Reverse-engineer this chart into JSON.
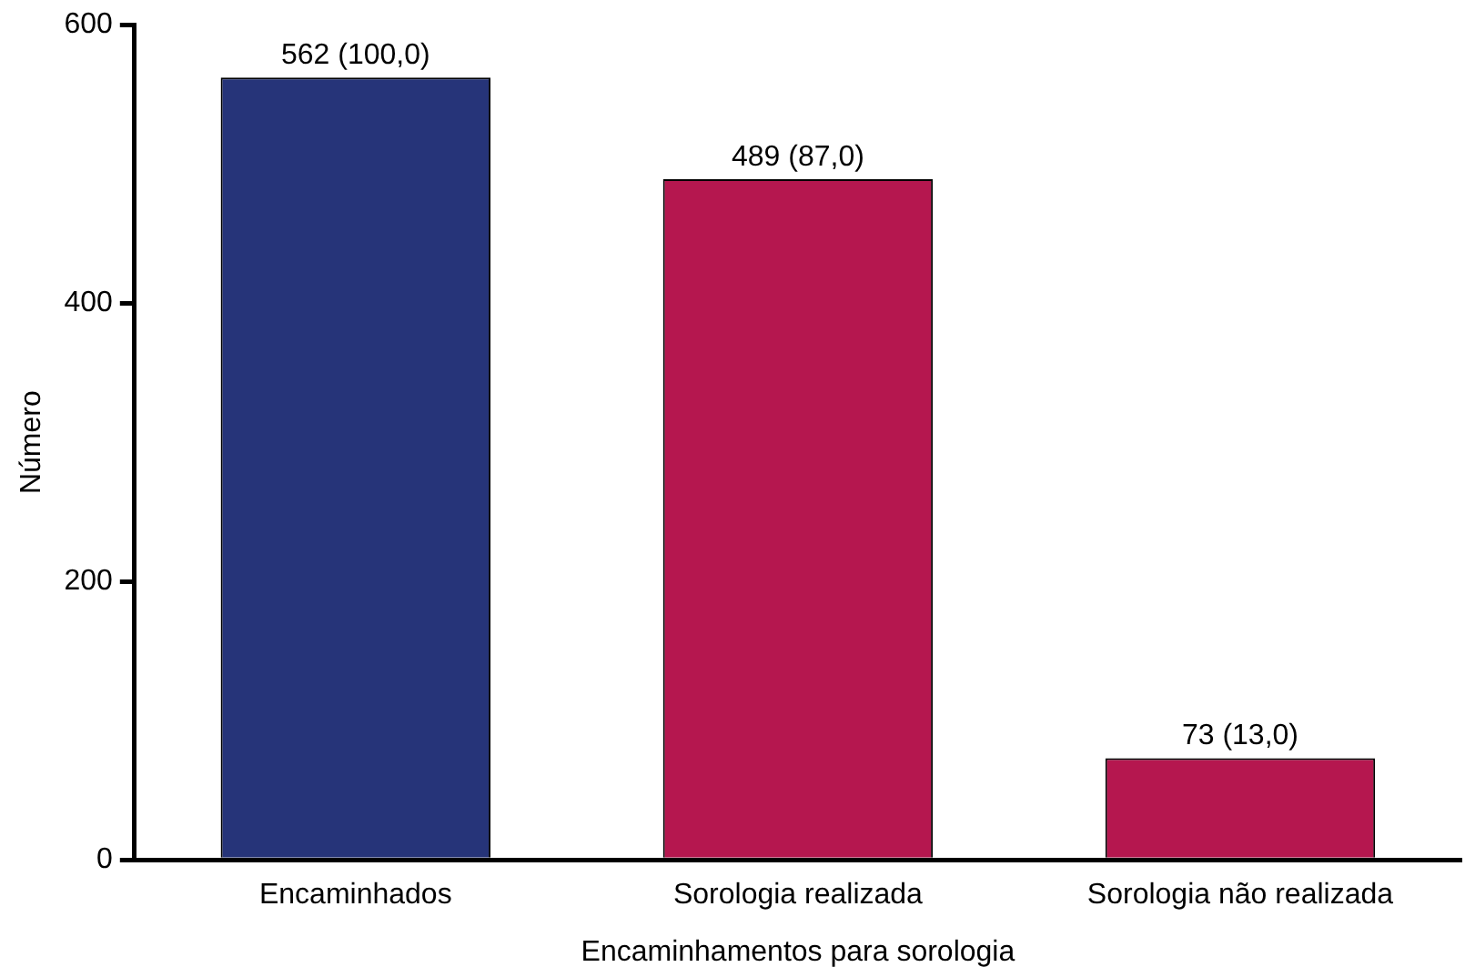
{
  "chart_data": {
    "type": "bar",
    "xlabel": "Encaminhamentos para sorologia",
    "ylabel": "Número",
    "categories": [
      "Encaminhados",
      "Sorologia realizada",
      "Sorologia não realizada"
    ],
    "values": [
      562,
      489,
      73
    ],
    "colors": [
      "#263479",
      "#b5174f",
      "#b5174f"
    ],
    "value_labels": [
      "562 (100,0)",
      "489 (87,0)",
      "73 (13,0)"
    ],
    "ylim": [
      0,
      600
    ],
    "yticks": [
      0,
      200,
      400,
      600
    ],
    "grid": false,
    "legend": false
  }
}
